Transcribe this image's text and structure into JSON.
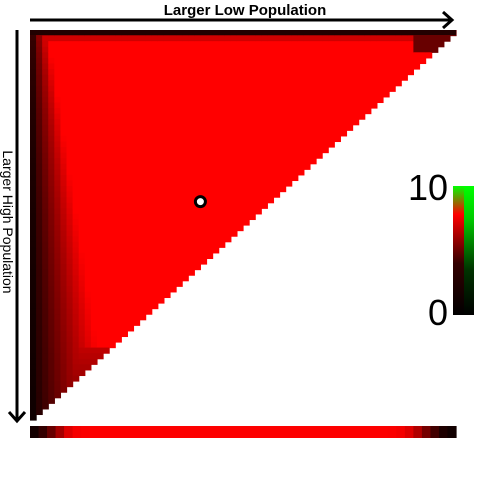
{
  "chart_data": {
    "type": "heatmap",
    "title": "",
    "xlabel": "Larger Low Population",
    "ylabel": "Larger High Population",
    "grid": false,
    "shape": "upper-left triangle",
    "colorbar": {
      "min_label": "0",
      "max_label": "10",
      "min": 0,
      "max": 10,
      "gradient": [
        "#000000",
        "#ff0000",
        "#00ff00"
      ]
    },
    "colors": {
      "high": "#ff0000",
      "low": "#000000",
      "marker_fill": "#ffffff",
      "marker_stroke": "#000000"
    },
    "marker": {
      "x": 0.4,
      "y": 0.44
    },
    "bottom_strip_values": [
      0.5,
      1.5,
      3.5,
      6,
      8.5,
      9.6,
      9.8,
      9.9,
      9.9,
      9.9,
      9.9,
      9.9,
      9.9,
      9.9,
      9.9,
      9.9,
      9.9,
      9.9,
      9.9,
      9.9,
      9.9,
      9.9,
      9.9,
      9.9,
      9.9,
      9.9,
      9.9,
      9.9,
      9.9,
      9.9,
      9.9,
      9.9,
      9.9,
      9.9,
      9.9,
      9.9,
      9.9,
      9.9,
      9.9,
      9.9,
      9.9,
      9.9,
      9.8,
      9.5,
      8.5,
      6.5,
      4,
      2,
      0.8,
      0.4
    ]
  }
}
